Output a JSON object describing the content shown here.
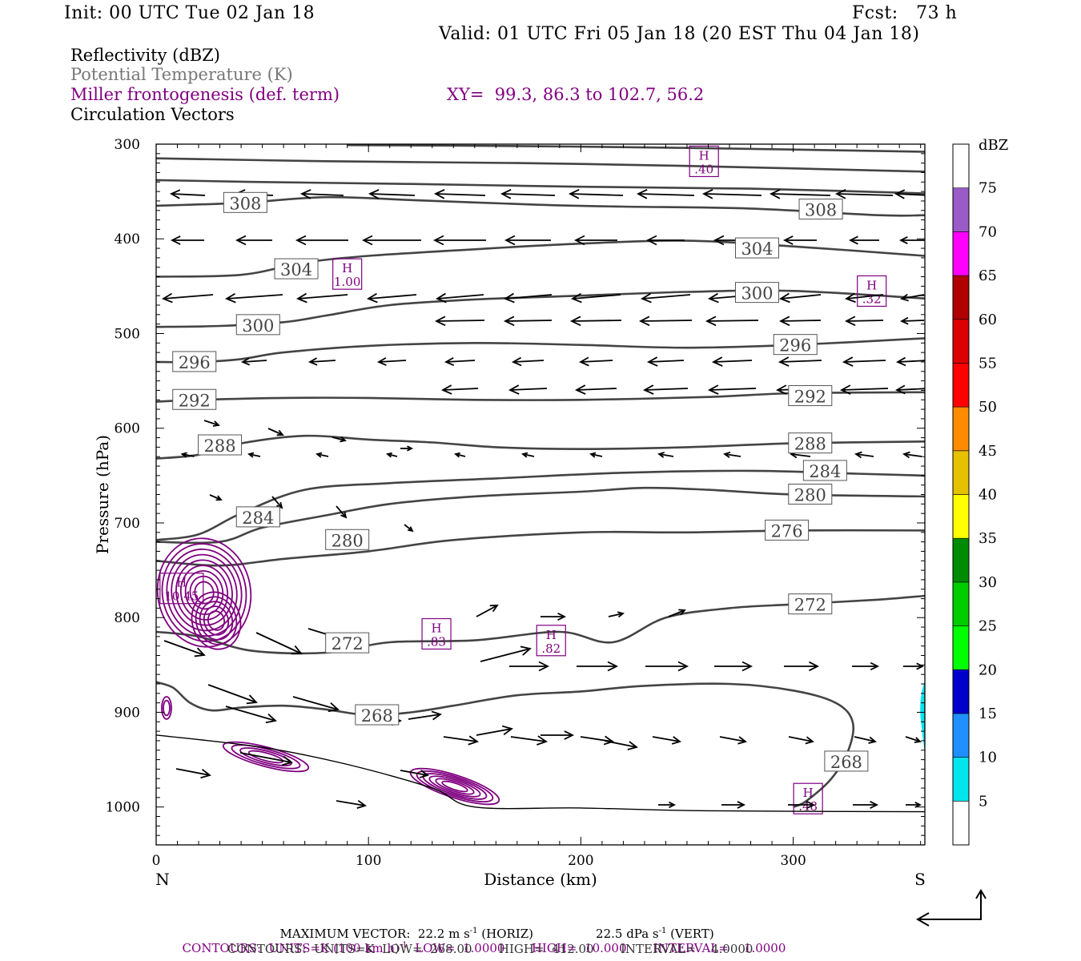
{
  "header": {
    "init": "Init: 00 UTC Tue 02 Jan 18",
    "fcst": "Fcst:   73 h",
    "valid": "Valid: 01 UTC Fri 05 Jan 18 (20 EST Thu 04 Jan 18)"
  },
  "legend": {
    "reflectivity": "Reflectivity (dBZ)",
    "theta": "Potential Temperature (K)",
    "frontogenesis": "Miller frontogenesis (def. term)",
    "xy": "XY=  99.3, 86.3 to 102.7, 56.2",
    "vectors": "Circulation Vectors"
  },
  "colors": {
    "theta_contour": "#444444",
    "frontogenesis": "#800080",
    "terrain": "#000000",
    "reflectivity_cyan": "#00e5ee"
  },
  "footer": {
    "max_vector": "MAXIMUM VECTOR:  22.2 m s",
    "max_vector_exp": "-1",
    "max_vector_h": " (HORIZ)",
    "max_vector_v": "22.5 dPa s",
    "max_vector_v_exp": "-1",
    "max_vector_v_tail": " (VERT)",
    "contours1_a": "CONTOURS:  UNITS=K (100 km h)",
    "contours1_exp": "-1",
    "contours1_b": "  LOW=  1.0000       HIGH=  10.000       INTERVAL=    1.0000",
    "contours2": "CONTOURS:  UNITS=K  LOW=  268.00       HIGH=  412.00       INTERVAL=    4.0000"
  },
  "chart_data": {
    "type": "cross-section",
    "xlabel": "Distance (km)",
    "ylabel": "Pressure (hPa)",
    "x_ticks": [
      0,
      100,
      200,
      300
    ],
    "y_ticks": [
      300,
      400,
      500,
      600,
      700,
      800,
      900,
      1000
    ],
    "xlim": [
      0,
      362
    ],
    "ylim": [
      1040,
      300
    ],
    "left_label": "N",
    "right_label": "S",
    "colorbar": {
      "unit": "dBZ",
      "levels": [
        5,
        10,
        15,
        20,
        25,
        30,
        35,
        40,
        45,
        50,
        55,
        60,
        65,
        70,
        75
      ],
      "colors": [
        "#ffffff",
        "#00e5ee",
        "#1e90ff",
        "#0000cd",
        "#00ff00",
        "#00cd00",
        "#008b00",
        "#ffff00",
        "#e5c100",
        "#ff8c00",
        "#ff0000",
        "#dd0000",
        "#b00000",
        "#ff00ff",
        "#9a5ac8",
        "#ffffff"
      ]
    },
    "theta_contours": [
      {
        "value": 268,
        "points": [
          [
            0,
            868
          ],
          [
            8,
            874
          ],
          [
            16,
            890
          ],
          [
            26,
            898
          ],
          [
            40,
            895
          ],
          [
            60,
            893
          ],
          [
            80,
            897
          ],
          [
            100,
            903
          ],
          [
            120,
            900
          ],
          [
            140,
            893
          ],
          [
            170,
            882
          ],
          [
            200,
            878
          ],
          [
            230,
            872
          ],
          [
            270,
            870
          ],
          [
            300,
            877
          ],
          [
            320,
            890
          ],
          [
            328,
            910
          ],
          [
            326,
            940
          ],
          [
            318,
            970
          ],
          [
            306,
            994
          ],
          [
            300,
            1000
          ]
        ],
        "labels": [
          [
            104,
            903
          ],
          [
            325,
            952
          ]
        ]
      },
      {
        "value": 272,
        "points": [
          [
            0,
            815
          ],
          [
            20,
            820
          ],
          [
            45,
            835
          ],
          [
            80,
            837
          ],
          [
            110,
            826
          ],
          [
            150,
            824
          ],
          [
            190,
            815
          ],
          [
            215,
            826
          ],
          [
            240,
            800
          ],
          [
            270,
            790
          ],
          [
            300,
            786
          ],
          [
            340,
            781
          ],
          [
            362,
            777
          ]
        ],
        "labels": [
          [
            90,
            827
          ],
          [
            308,
            786
          ]
        ]
      },
      {
        "value": 276,
        "points": [
          [
            0,
            740
          ],
          [
            30,
            745
          ],
          [
            60,
            738
          ],
          [
            100,
            730
          ],
          [
            140,
            718
          ],
          [
            200,
            710
          ],
          [
            250,
            710
          ],
          [
            300,
            708
          ],
          [
            362,
            708
          ]
        ],
        "labels": [
          [
            297,
            708
          ]
        ]
      },
      {
        "value": 280,
        "points": [
          [
            0,
            720
          ],
          [
            30,
            720
          ],
          [
            50,
            705
          ],
          [
            80,
            692
          ],
          [
            110,
            680
          ],
          [
            150,
            672
          ],
          [
            200,
            667
          ],
          [
            230,
            663
          ],
          [
            260,
            665
          ],
          [
            300,
            670
          ],
          [
            362,
            672
          ]
        ],
        "labels": [
          [
            90,
            718
          ],
          [
            308,
            670
          ]
        ]
      },
      {
        "value": 284,
        "points": [
          [
            0,
            718
          ],
          [
            20,
            712
          ],
          [
            40,
            690
          ],
          [
            70,
            665
          ],
          [
            110,
            658
          ],
          [
            160,
            653
          ],
          [
            220,
            647
          ],
          [
            280,
            645
          ],
          [
            330,
            648
          ],
          [
            362,
            650
          ]
        ],
        "labels": [
          [
            48,
            694
          ],
          [
            315,
            645
          ]
        ]
      },
      {
        "value": 288,
        "points": [
          [
            0,
            632
          ],
          [
            20,
            628
          ],
          [
            40,
            616
          ],
          [
            70,
            608
          ],
          [
            100,
            612
          ],
          [
            130,
            615
          ],
          [
            160,
            620
          ],
          [
            200,
            622
          ],
          [
            250,
            620
          ],
          [
            300,
            616
          ],
          [
            362,
            614
          ]
        ],
        "labels": [
          [
            30,
            618
          ],
          [
            308,
            616
          ]
        ]
      },
      {
        "value": 292,
        "points": [
          [
            0,
            572
          ],
          [
            20,
            570
          ],
          [
            60,
            568
          ],
          [
            100,
            568
          ],
          [
            150,
            570
          ],
          [
            200,
            570
          ],
          [
            260,
            567
          ],
          [
            300,
            563
          ],
          [
            362,
            562
          ]
        ],
        "labels": [
          [
            18,
            570
          ],
          [
            308,
            566
          ]
        ]
      },
      {
        "value": 296,
        "points": [
          [
            0,
            530
          ],
          [
            20,
            530
          ],
          [
            40,
            527
          ],
          [
            60,
            520
          ],
          [
            100,
            513
          ],
          [
            150,
            510
          ],
          [
            200,
            512
          ],
          [
            250,
            515
          ],
          [
            300,
            512
          ],
          [
            362,
            505
          ]
        ],
        "labels": [
          [
            18,
            530
          ],
          [
            301,
            512
          ]
        ]
      },
      {
        "value": 300,
        "points": [
          [
            0,
            493
          ],
          [
            30,
            492
          ],
          [
            60,
            488
          ],
          [
            80,
            481
          ],
          [
            110,
            470
          ],
          [
            150,
            464
          ],
          [
            200,
            460
          ],
          [
            250,
            456
          ],
          [
            300,
            455
          ],
          [
            362,
            463
          ]
        ],
        "labels": [
          [
            48,
            491
          ],
          [
            283,
            457
          ]
        ]
      },
      {
        "value": 304,
        "points": [
          [
            0,
            440
          ],
          [
            40,
            438
          ],
          [
            70,
            425
          ],
          [
            100,
            418
          ],
          [
            150,
            411
          ],
          [
            200,
            405
          ],
          [
            250,
            402
          ],
          [
            300,
            408
          ],
          [
            362,
            418
          ]
        ],
        "labels": [
          [
            66,
            432
          ],
          [
            283,
            410
          ]
        ]
      },
      {
        "value": 308,
        "points": [
          [
            0,
            365
          ],
          [
            40,
            362
          ],
          [
            80,
            356
          ],
          [
            120,
            359
          ],
          [
            180,
            364
          ],
          [
            220,
            366
          ],
          [
            280,
            368
          ],
          [
            340,
            375
          ],
          [
            362,
            375
          ]
        ],
        "labels": [
          [
            42,
            362
          ],
          [
            313,
            369
          ]
        ]
      },
      {
        "value": 312,
        "points": [
          [
            0,
            338
          ],
          [
            50,
            340
          ],
          [
            120,
            342
          ],
          [
            200,
            345
          ],
          [
            280,
            347
          ],
          [
            362,
            352
          ]
        ],
        "labels": []
      },
      {
        "value": 316,
        "points": [
          [
            0,
            315
          ],
          [
            80,
            318
          ],
          [
            170,
            320
          ],
          [
            250,
            323
          ],
          [
            362,
            329
          ]
        ],
        "labels": []
      },
      {
        "value": 320,
        "points": [
          [
            90,
            301
          ],
          [
            170,
            302
          ],
          [
            250,
            304
          ],
          [
            362,
            308
          ]
        ],
        "labels": []
      }
    ],
    "terrain": [
      [
        0,
        924
      ],
      [
        50,
        937
      ],
      [
        90,
        955
      ],
      [
        130,
        980
      ],
      [
        150,
        1000
      ],
      [
        200,
        1001
      ],
      [
        260,
        1004
      ],
      [
        362,
        1005
      ]
    ],
    "highs": [
      {
        "label": "H",
        "value": "10.45",
        "x": 12,
        "p": 770
      },
      {
        "label": "H",
        "value": "1.00",
        "x": 90,
        "p": 438
      },
      {
        "label": "H",
        "value": ".83",
        "x": 132,
        "p": 818
      },
      {
        "label": "H",
        "value": ".82",
        "x": 186,
        "p": 825
      },
      {
        "label": "H",
        "value": ".40",
        "x": 258,
        "p": 319
      },
      {
        "label": "H",
        "value": ".32",
        "x": 337,
        "p": 456
      },
      {
        "label": "H",
        "value": ".48",
        "x": 307,
        "p": 992
      }
    ]
  }
}
